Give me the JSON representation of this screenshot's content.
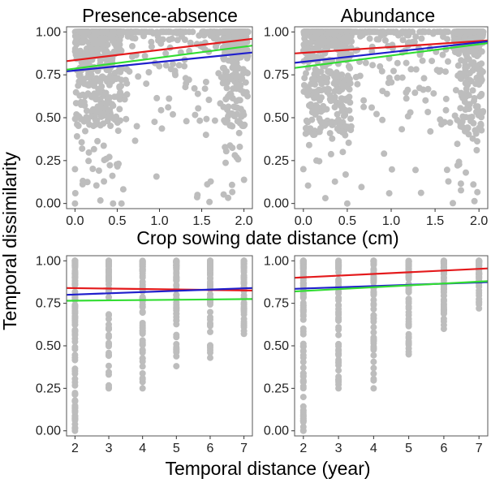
{
  "figure": {
    "shared_ylabel": "Temporal dissimilarity",
    "top_xlabel": "Crop sowing date distance (cm)",
    "bottom_xlabel": "Temporal distance (year)"
  },
  "colors": {
    "red": "#e41a1c",
    "blue": "#1f1fcc",
    "green": "#33dd33",
    "points": "#bdbdbd",
    "frame": "#555555"
  },
  "chart_data": [
    {
      "type": "scatter",
      "title": "Presence-absence",
      "xlim": [
        -0.1,
        2.1
      ],
      "ylim": [
        -0.03,
        1.03
      ],
      "xticks": [
        "0.0",
        "0.5",
        "1.0",
        "1.5",
        "2.0"
      ],
      "xtick_values": [
        0,
        0.5,
        1.0,
        1.5,
        2.0
      ],
      "yticks": [
        "0.00",
        "0.25",
        "0.50",
        "0.75",
        "1.00"
      ],
      "ytick_values": [
        0,
        0.25,
        0.5,
        0.75,
        1.0
      ],
      "point_color": "#bdbdbd",
      "fit_lines": [
        {
          "color": "#e41a1c",
          "x": [
            -0.1,
            2.1
          ],
          "y": [
            0.83,
            0.96
          ]
        },
        {
          "color": "#1f1fcc",
          "x": [
            -0.1,
            2.1
          ],
          "y": [
            0.77,
            0.88
          ]
        },
        {
          "color": "#33dd33",
          "x": [
            -0.1,
            2.1
          ],
          "y": [
            0.78,
            0.92
          ]
        }
      ]
    },
    {
      "type": "scatter",
      "title": "Abundance",
      "xlim": [
        -0.1,
        2.1
      ],
      "ylim": [
        -0.03,
        1.03
      ],
      "xticks": [
        "0.0",
        "0.5",
        "1.0",
        "1.5",
        "2.0"
      ],
      "xtick_values": [
        0,
        0.5,
        1.0,
        1.5,
        2.0
      ],
      "yticks": [
        "0.00",
        "0.25",
        "0.50",
        "0.75",
        "1.00"
      ],
      "ytick_values": [
        0,
        0.25,
        0.5,
        0.75,
        1.0
      ],
      "point_color": "#bdbdbd",
      "fit_lines": [
        {
          "color": "#e41a1c",
          "x": [
            -0.1,
            2.1
          ],
          "y": [
            0.875,
            0.95
          ]
        },
        {
          "color": "#1f1fcc",
          "x": [
            -0.1,
            2.1
          ],
          "y": [
            0.82,
            0.945
          ]
        },
        {
          "color": "#33dd33",
          "x": [
            -0.1,
            2.1
          ],
          "y": [
            0.79,
            0.935
          ]
        }
      ]
    },
    {
      "type": "scatter",
      "title": "",
      "xlim": [
        1.75,
        7.25
      ],
      "ylim": [
        -0.03,
        1.03
      ],
      "xticks": [
        "2",
        "3",
        "4",
        "5",
        "6",
        "7"
      ],
      "xtick_values": [
        2,
        3,
        4,
        5,
        6,
        7
      ],
      "yticks": [
        "0.00",
        "0.25",
        "0.50",
        "0.75",
        "1.00"
      ],
      "ytick_values": [
        0,
        0.25,
        0.5,
        0.75,
        1.0
      ],
      "point_color": "#bdbdbd",
      "fit_lines": [
        {
          "color": "#e41a1c",
          "x": [
            1.75,
            7.25
          ],
          "y": [
            0.84,
            0.825
          ]
        },
        {
          "color": "#1f1fcc",
          "x": [
            1.75,
            7.25
          ],
          "y": [
            0.8,
            0.84
          ]
        },
        {
          "color": "#33dd33",
          "x": [
            1.75,
            7.25
          ],
          "y": [
            0.765,
            0.775
          ]
        }
      ]
    },
    {
      "type": "scatter",
      "title": "",
      "xlim": [
        1.75,
        7.25
      ],
      "ylim": [
        -0.03,
        1.03
      ],
      "xticks": [
        "2",
        "3",
        "4",
        "5",
        "6",
        "7"
      ],
      "xtick_values": [
        2,
        3,
        4,
        5,
        6,
        7
      ],
      "yticks": [
        "0.00",
        "0.25",
        "0.50",
        "0.75",
        "1.00"
      ],
      "ytick_values": [
        0,
        0.25,
        0.5,
        0.75,
        1.0
      ],
      "point_color": "#bdbdbd",
      "fit_lines": [
        {
          "color": "#e41a1c",
          "x": [
            1.75,
            7.25
          ],
          "y": [
            0.9,
            0.955
          ]
        },
        {
          "color": "#1f1fcc",
          "x": [
            1.75,
            7.25
          ],
          "y": [
            0.835,
            0.875
          ]
        },
        {
          "color": "#33dd33",
          "x": [
            1.75,
            7.25
          ],
          "y": [
            0.82,
            0.88
          ]
        }
      ]
    }
  ]
}
